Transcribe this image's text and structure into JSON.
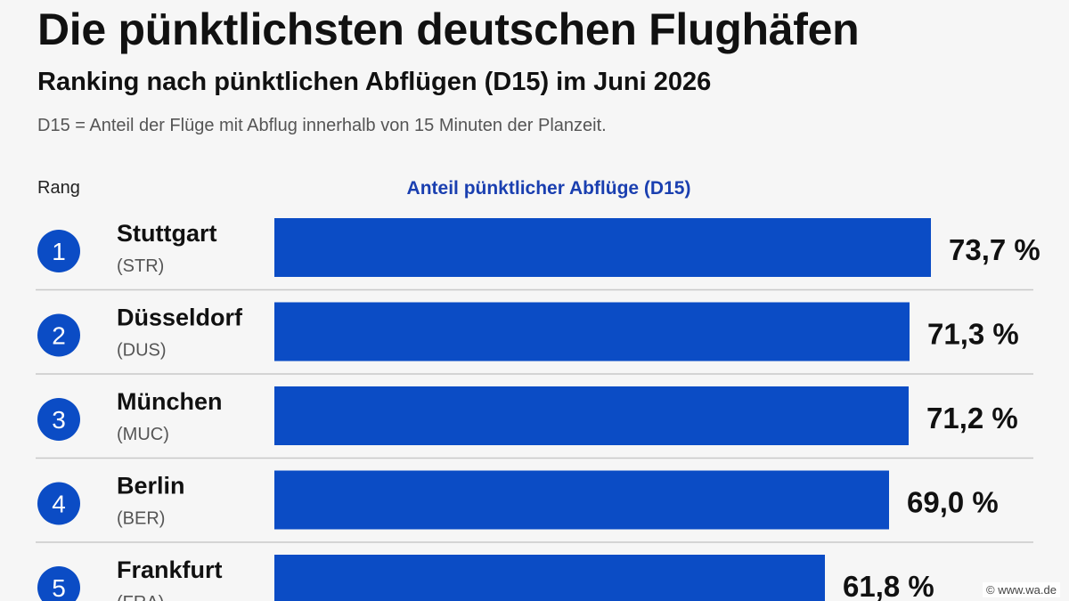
{
  "title": "Die pünktlichsten deutschen Flughäfen",
  "subtitle": "Ranking nach pünktlichen Abflügen (D15) im Juni 2026",
  "note": "D15 = Anteil der Flüge mit Abflug innerhalb von 15 Minuten der Planzeit.",
  "rank_header": "Rang",
  "footer": "© www.wa.de",
  "colors": {
    "bar": "#0b4cc5",
    "badge": "#0b4cc5",
    "axis_title": "#1a3fb0"
  },
  "chart_data": {
    "type": "bar",
    "orientation": "horizontal",
    "xlabel": "Anteil pünktlicher Abflüge (D15)",
    "xlim": [
      0,
      77
    ],
    "categories": [
      "Stuttgart",
      "Düsseldorf",
      "München",
      "Berlin",
      "Frankfurt"
    ],
    "codes": [
      "(STR)",
      "(DUS)",
      "(MUC)",
      "(BER)",
      "(FRA)"
    ],
    "ranks": [
      "1",
      "2",
      "3",
      "4",
      "5"
    ],
    "values": [
      73.7,
      71.3,
      71.2,
      69.0,
      61.8
    ],
    "value_labels": [
      "73,7 %",
      "71,3 %",
      "71,2 %",
      "69,0 %",
      "61,8 %"
    ]
  }
}
